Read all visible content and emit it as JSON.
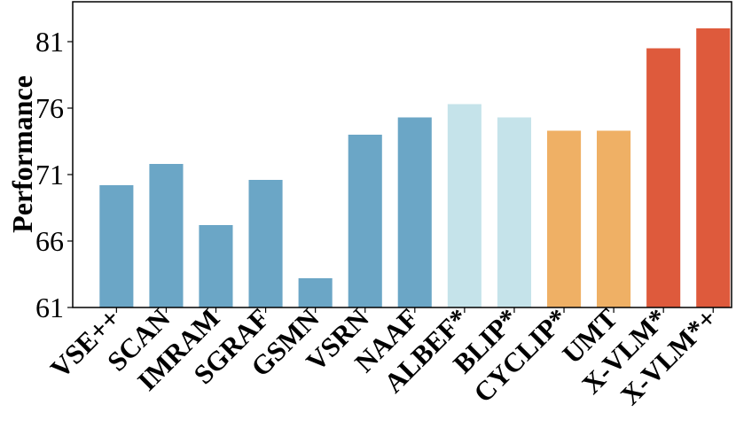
{
  "chart_data": {
    "type": "bar",
    "title": "",
    "xlabel": "",
    "ylabel": "Performance",
    "ylim": [
      61,
      84
    ],
    "yticks": [
      "61",
      "66",
      "71",
      "76",
      "81"
    ],
    "grid": false,
    "categories": [
      "VSE++",
      "SCAN",
      "IMRAM",
      "SGRAF",
      "GSMN",
      "VSRN",
      "NAAF",
      "ALBEF*",
      "BLIP*",
      "CYCLIP*",
      "UMT",
      "X-VLM*",
      "X-VLM*+"
    ],
    "values": [
      70.2,
      71.8,
      67.2,
      70.6,
      63.2,
      74.0,
      75.3,
      76.3,
      75.3,
      74.3,
      74.3,
      80.5,
      82.0
    ],
    "colors": [
      "#6ba6c6",
      "#6ba6c6",
      "#6ba6c6",
      "#6ba6c6",
      "#6ba6c6",
      "#6ba6c6",
      "#6ba6c6",
      "#c5e3ea",
      "#c5e3ea",
      "#efb065",
      "#efb065",
      "#de5a3c",
      "#de5a3c"
    ]
  }
}
